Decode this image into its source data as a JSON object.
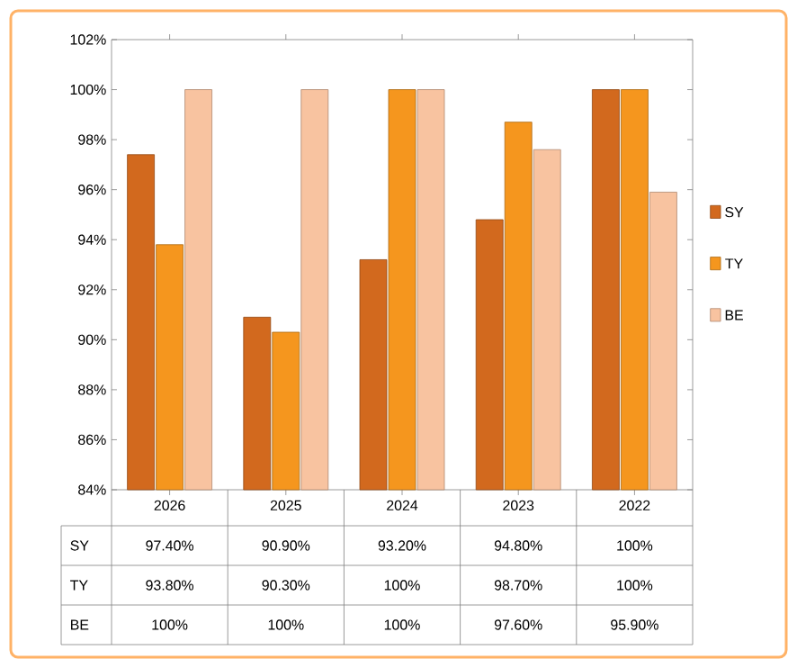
{
  "chart_data": {
    "type": "bar",
    "categories": [
      "2026",
      "2025",
      "2024",
      "2023",
      "2022"
    ],
    "series": [
      {
        "name": "SY",
        "color": "#d2691e",
        "values": [
          97.4,
          90.9,
          93.2,
          94.8,
          100
        ],
        "value_labels": [
          "97.40%",
          "90.90%",
          "93.20%",
          "94.80%",
          "100%"
        ]
      },
      {
        "name": "TY",
        "color": "#f5961e",
        "values": [
          93.8,
          90.3,
          100,
          98.7,
          100
        ],
        "value_labels": [
          "93.80%",
          "90.30%",
          "100%",
          "98.70%",
          "100%"
        ]
      },
      {
        "name": "BE",
        "color": "#f8c3a0",
        "values": [
          100,
          100,
          100,
          97.6,
          95.9
        ],
        "value_labels": [
          "100%",
          "100%",
          "100%",
          "97.60%",
          "95.90%"
        ]
      }
    ],
    "ylim": [
      84,
      102
    ],
    "yticks": [
      {
        "value": 84,
        "label": "84%"
      },
      {
        "value": 86,
        "label": "86%"
      },
      {
        "value": 88,
        "label": "88%"
      },
      {
        "value": 90,
        "label": "90%"
      },
      {
        "value": 92,
        "label": "92%"
      },
      {
        "value": 94,
        "label": "94%"
      },
      {
        "value": 96,
        "label": "96%"
      },
      {
        "value": 98,
        "label": "98%"
      },
      {
        "value": 100,
        "label": "100%"
      },
      {
        "value": 102,
        "label": "102%"
      }
    ],
    "legend": "right"
  }
}
